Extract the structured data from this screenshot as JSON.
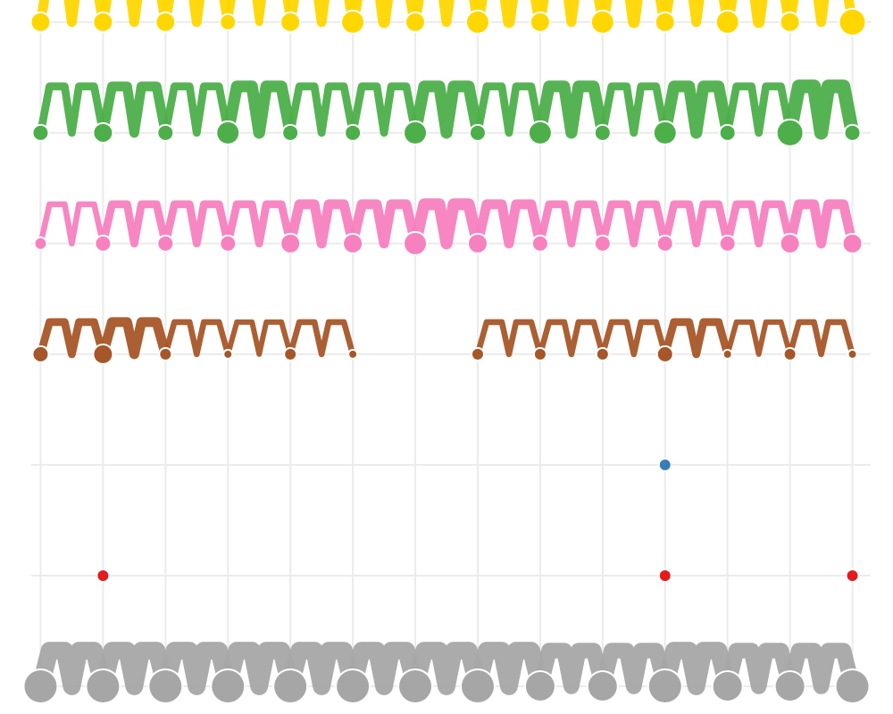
{
  "chart_data": {
    "type": "scatter",
    "title": "",
    "xlabel": "",
    "ylabel": "",
    "x": [
      1,
      2,
      3,
      4,
      5,
      6,
      7,
      8,
      9,
      10,
      11,
      12,
      13,
      14
    ],
    "y_levels": 7,
    "xlim": [
      0.35,
      14.65
    ],
    "ylim": [
      0.75,
      7.2
    ],
    "grid": true,
    "legend": "none",
    "series": [
      {
        "color": "#A6A6A6",
        "points": [
          [
            1,
            1,
            9
          ],
          [
            2,
            1,
            9
          ],
          [
            3,
            1,
            9
          ],
          [
            4,
            1,
            9
          ],
          [
            5,
            1,
            9
          ],
          [
            6,
            1,
            9
          ],
          [
            7,
            1,
            9
          ],
          [
            8,
            1,
            9
          ],
          [
            9,
            1,
            8
          ],
          [
            10,
            1,
            8
          ],
          [
            11,
            1,
            9
          ],
          [
            12,
            1,
            8
          ],
          [
            13,
            1,
            8
          ],
          [
            14,
            1,
            9
          ]
        ]
      },
      {
        "color": "#FFD700",
        "points": [
          [
            1,
            7,
            5
          ],
          [
            2,
            7,
            5
          ],
          [
            3,
            7,
            5
          ],
          [
            4,
            7,
            4
          ],
          [
            5,
            7,
            5
          ],
          [
            6,
            7,
            6
          ],
          [
            7,
            7,
            5
          ],
          [
            8,
            7,
            6
          ],
          [
            9,
            7,
            5
          ],
          [
            10,
            7,
            6
          ],
          [
            11,
            7,
            5
          ],
          [
            12,
            7,
            6
          ],
          [
            13,
            7,
            5
          ],
          [
            14,
            7,
            7
          ]
        ]
      },
      {
        "color": "#4DAF4A",
        "points": [
          [
            1,
            6,
            4
          ],
          [
            2,
            6,
            5
          ],
          [
            3,
            6,
            4
          ],
          [
            4,
            6,
            6
          ],
          [
            5,
            6,
            4
          ],
          [
            6,
            6,
            4
          ],
          [
            7,
            6,
            6
          ],
          [
            8,
            6,
            4
          ],
          [
            9,
            6,
            6
          ],
          [
            10,
            6,
            4
          ],
          [
            11,
            6,
            6
          ],
          [
            12,
            6,
            4
          ],
          [
            13,
            6,
            7
          ],
          [
            14,
            6,
            4
          ]
        ]
      },
      {
        "color": "#F781BF",
        "points": [
          [
            1,
            5,
            3
          ],
          [
            2,
            5,
            4
          ],
          [
            3,
            5,
            4
          ],
          [
            4,
            5,
            4
          ],
          [
            5,
            5,
            5
          ],
          [
            6,
            5,
            5
          ],
          [
            7,
            5,
            6
          ],
          [
            8,
            5,
            5
          ],
          [
            9,
            5,
            4
          ],
          [
            10,
            5,
            4
          ],
          [
            11,
            5,
            4
          ],
          [
            12,
            5,
            4
          ],
          [
            13,
            5,
            5
          ],
          [
            14,
            5,
            5
          ]
        ]
      },
      {
        "color": "#A65628",
        "points": [
          [
            1,
            4,
            4
          ],
          [
            2,
            4,
            5
          ],
          [
            3,
            4,
            3
          ],
          [
            4,
            4,
            2
          ],
          [
            5,
            4,
            3
          ],
          [
            6,
            4,
            2
          ],
          [
            8,
            4,
            3
          ],
          [
            9,
            4,
            3
          ],
          [
            10,
            4,
            3
          ],
          [
            11,
            4,
            4
          ],
          [
            12,
            4,
            2
          ],
          [
            13,
            4,
            3
          ],
          [
            14,
            4,
            2
          ]
        ]
      },
      {
        "color": "#377EB8",
        "points": [
          [
            11,
            3,
            3
          ]
        ]
      },
      {
        "color": "#E41A1C",
        "points": [
          [
            2,
            2,
            3
          ],
          [
            11,
            2,
            3
          ],
          [
            14,
            2,
            3
          ]
        ]
      }
    ]
  }
}
